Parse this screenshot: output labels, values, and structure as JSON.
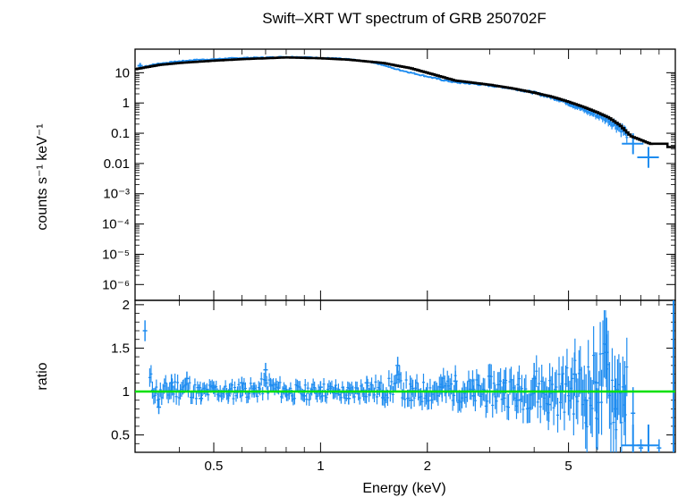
{
  "chart_data": [
    {
      "type": "scatter",
      "panel": "spectrum",
      "title": "Swift–XRT WT spectrum of GRB 250702F",
      "xlabel": "",
      "ylabel": "counts s⁻¹ keV⁻¹",
      "xscale": "log",
      "yscale": "log",
      "xlim": [
        0.3,
        10
      ],
      "ylim": [
        3e-07,
        60
      ],
      "x_ticks": [
        0.5,
        1,
        2,
        5
      ],
      "y_ticks": [
        1e-06,
        1e-05,
        0.0001,
        0.001,
        0.01,
        0.1,
        1,
        10
      ],
      "y_tick_labels": [
        "10⁻⁶",
        "10⁻⁵",
        "10⁻⁴",
        "10⁻³",
        "0.01",
        "0.1",
        "1",
        "10"
      ],
      "colors": {
        "data": "#1e8cf0",
        "model": "#000000"
      },
      "series": [
        {
          "kind": "data",
          "x": [
            0.31,
            0.35,
            0.4,
            0.45,
            0.5,
            0.55,
            0.6,
            0.7,
            0.8,
            0.9,
            1.0,
            1.1,
            1.2,
            1.3,
            1.4,
            1.5,
            1.6,
            1.8,
            2.0,
            2.2,
            2.4,
            2.7,
            3.0,
            3.3,
            3.6,
            4.0,
            4.4,
            4.8,
            5.2,
            5.6,
            6.0,
            6.4,
            6.8,
            7.2,
            7.6,
            8.0,
            9.0
          ],
          "y": [
            15,
            20,
            24,
            27,
            28,
            30,
            31,
            32,
            34,
            33,
            31,
            30,
            28,
            25,
            22,
            18,
            14,
            10,
            7.5,
            5.8,
            4.8,
            4.3,
            3.8,
            3.3,
            2.8,
            2.2,
            1.6,
            1.2,
            0.8,
            0.55,
            0.4,
            0.3,
            0.2,
            0.12,
            0.045,
            0.045,
            0.016
          ],
          "yerr_frac": [
            0.1,
            0.06,
            0.05,
            0.05,
            0.05,
            0.05,
            0.05,
            0.05,
            0.05,
            0.05,
            0.05,
            0.05,
            0.05,
            0.05,
            0.05,
            0.05,
            0.06,
            0.06,
            0.06,
            0.07,
            0.07,
            0.07,
            0.08,
            0.08,
            0.08,
            0.1,
            0.1,
            0.12,
            0.15,
            0.18,
            0.2,
            0.25,
            0.3,
            0.35,
            0.3,
            0.3,
            0.35
          ]
        },
        {
          "kind": "model",
          "x": [
            0.3,
            0.35,
            0.4,
            0.5,
            0.6,
            0.8,
            1.0,
            1.2,
            1.5,
            1.8,
            2.0,
            2.4,
            3.0,
            3.5,
            4.0,
            4.5,
            5.0,
            5.5,
            6.0,
            6.5,
            7.0,
            7.5,
            8.0,
            8.5,
            10
          ],
          "y": [
            13,
            18,
            21,
            25,
            28,
            32,
            30,
            27,
            21,
            14,
            10,
            5.5,
            4.0,
            3.0,
            2.2,
            1.6,
            1.1,
            0.75,
            0.5,
            0.33,
            0.18,
            0.08,
            0.06,
            0.045,
            0.035
          ]
        }
      ]
    },
    {
      "type": "scatter",
      "panel": "ratio",
      "xlabel": "Energy (keV)",
      "ylabel": "ratio",
      "xscale": "log",
      "xlim": [
        0.3,
        10
      ],
      "ylim": [
        0.3,
        2.05
      ],
      "x_ticks": [
        0.5,
        1,
        2,
        5
      ],
      "x_tick_labels": [
        "0.5",
        "1",
        "2",
        "5"
      ],
      "y_ticks": [
        0.5,
        1,
        1.5,
        2
      ],
      "y_tick_labels": [
        "0.5",
        "1",
        "1.5",
        "2"
      ],
      "reference_line": 1,
      "colors": {
        "data": "#1e8cf0",
        "reference": "#00e000"
      },
      "series": [
        {
          "kind": "data",
          "x": [
            0.32,
            0.35,
            0.38,
            0.42,
            0.46,
            0.5,
            0.55,
            0.6,
            0.65,
            0.7,
            0.8,
            0.9,
            1.0,
            1.1,
            1.2,
            1.35,
            1.5,
            1.65,
            1.8,
            2.0,
            2.2,
            2.4,
            2.7,
            3.0,
            3.3,
            3.6,
            4.0,
            4.4,
            4.8,
            5.2,
            5.6,
            6.0,
            6.4,
            6.8,
            7.2,
            7.6,
            8.0,
            9.0
          ],
          "y": [
            1.7,
            0.82,
            1.1,
            1.15,
            0.92,
            1.05,
            0.95,
            1.1,
            1.0,
            1.25,
            1.0,
            0.95,
            1.05,
            1.0,
            0.92,
            1.1,
            1.0,
            1.3,
            0.9,
            1.0,
            1.05,
            1.12,
            0.95,
            1.0,
            1.1,
            0.9,
            1.15,
            0.85,
            1.0,
            1.2,
            0.9,
            1.1,
            1.45,
            0.8,
            1.0,
            0.75,
            0.35,
            0.35
          ],
          "yerr": [
            0.12,
            0.08,
            0.1,
            0.08,
            0.07,
            0.07,
            0.07,
            0.07,
            0.07,
            0.08,
            0.07,
            0.07,
            0.07,
            0.07,
            0.07,
            0.08,
            0.09,
            0.1,
            0.1,
            0.1,
            0.12,
            0.12,
            0.12,
            0.14,
            0.15,
            0.15,
            0.18,
            0.2,
            0.2,
            0.25,
            0.3,
            0.35,
            0.4,
            0.35,
            0.35,
            0.3,
            0.1,
            0.1
          ]
        }
      ]
    }
  ]
}
